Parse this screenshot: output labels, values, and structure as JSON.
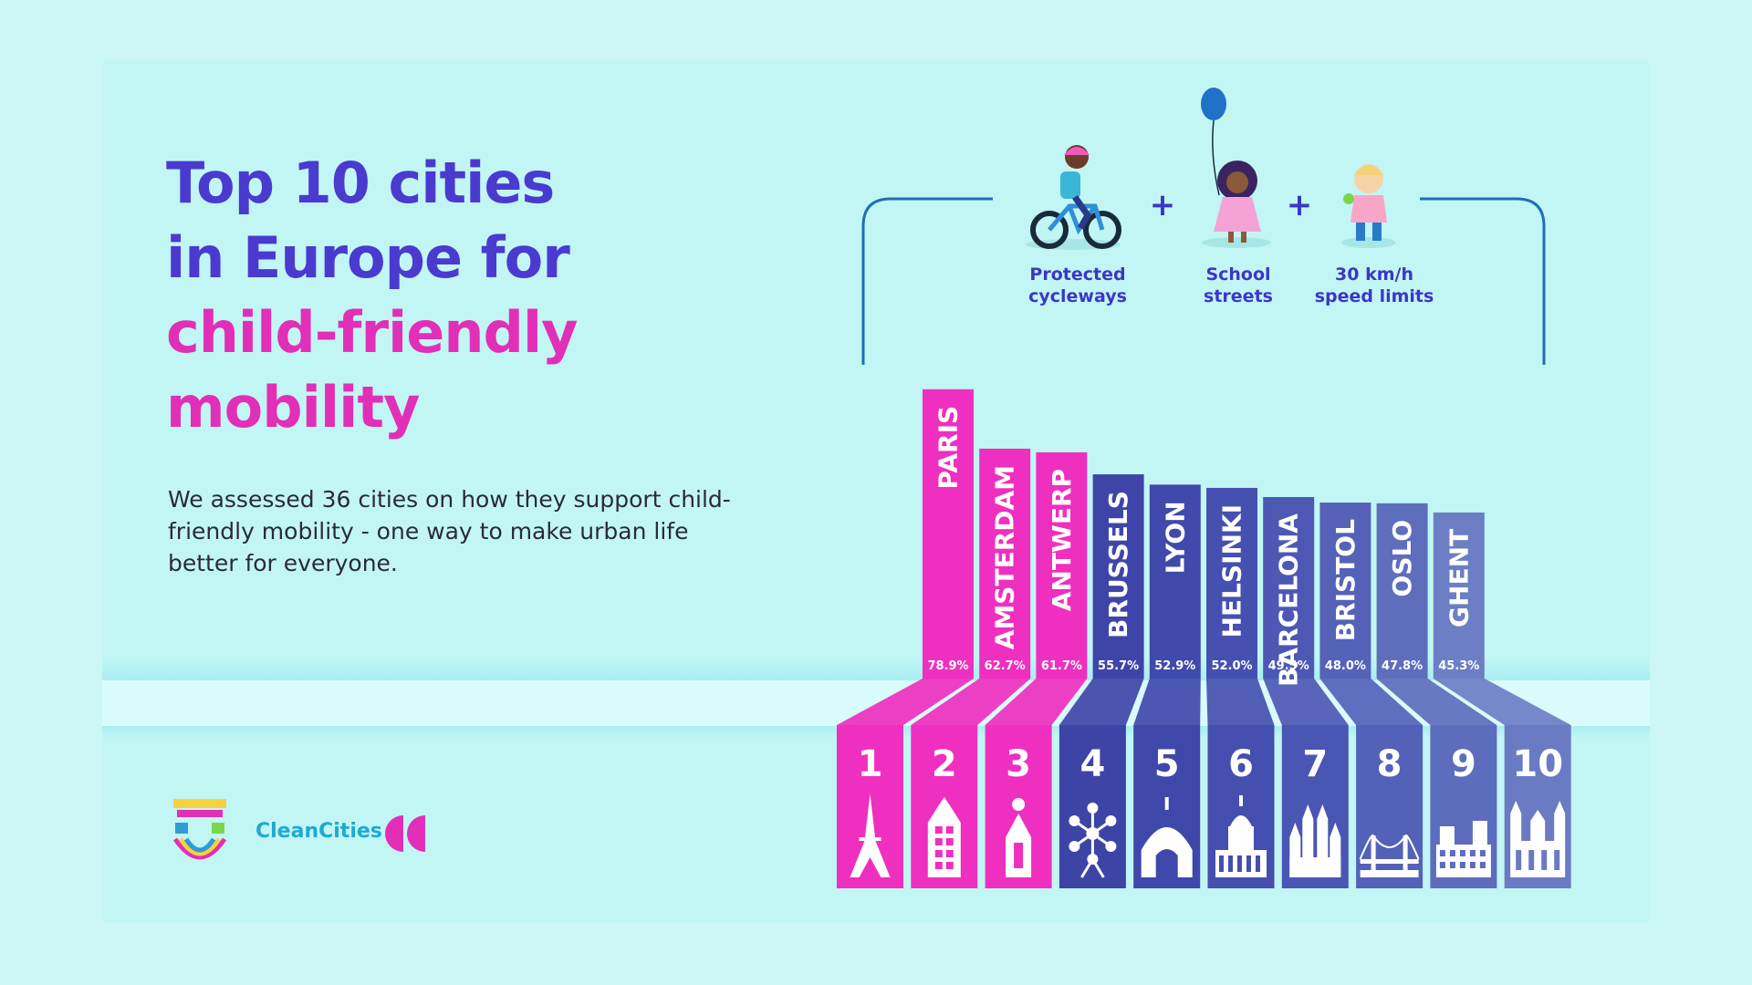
{
  "title": {
    "line1": "Top 10 cities",
    "line2": "in Europe for",
    "line3": "child-friendly",
    "line4": "mobility"
  },
  "subtitle": "We assessed 36 cities on how they support child-friendly mobility - one way to make urban life better for everyone.",
  "criteria": [
    {
      "label_line1": "Protected",
      "label_line2": "cycleways",
      "icon": "child-cycling-icon"
    },
    {
      "label_line1": "School",
      "label_line2": "streets",
      "icon": "child-with-balloon-icon"
    },
    {
      "label_line1": "30 km/h",
      "label_line2": "speed limits",
      "icon": "toddler-icon"
    }
  ],
  "logos": {
    "clean_cities": "CleanCities",
    "streets_for_kids": "streets-for-kids-logo"
  },
  "chart_data": {
    "type": "bar",
    "categories": [
      "PARIS",
      "AMSTERDAM",
      "ANTWERP",
      "BRUSSELS",
      "LYON",
      "HELSINKI",
      "BARCELONA",
      "BRISTOL",
      "OSLO",
      "GHENT"
    ],
    "values": [
      78.9,
      62.7,
      61.7,
      55.7,
      52.9,
      52.0,
      49.5,
      48.0,
      47.8,
      45.3
    ],
    "value_labels": [
      "78.9%",
      "62.7%",
      "61.7%",
      "55.7%",
      "52.9%",
      "52.0%",
      "49.5%",
      "48.0%",
      "47.8%",
      "45.3%"
    ],
    "ranks": [
      "1",
      "2",
      "3",
      "4",
      "5",
      "6",
      "7",
      "8",
      "9",
      "10"
    ],
    "landmark_icons": [
      "eiffel-tower-icon",
      "canal-house-icon",
      "cathedral-tower-icon",
      "atomium-icon",
      "basilica-icon",
      "cathedral-icon",
      "sagrada-familia-icon",
      "suspension-bridge-icon",
      "city-hall-icon",
      "belfry-icon"
    ],
    "colors": [
      "#ef2fbf",
      "#ef2fbf",
      "#ef2fbf",
      "#3f45a8",
      "#4049ac",
      "#4650b0",
      "#4d58b4",
      "#5562b8",
      "#5e6ebd",
      "#6c7ec4"
    ],
    "base_colors": [
      "#ef2fbf",
      "#ef2fbf",
      "#ef2fbf",
      "#3d44a6",
      "#3f48aa",
      "#444faf",
      "#4a56b3",
      "#5361b8",
      "#5d6cbd",
      "#6a7bc3"
    ],
    "ylim": [
      0,
      80
    ],
    "xlabel": "",
    "ylabel": ""
  }
}
